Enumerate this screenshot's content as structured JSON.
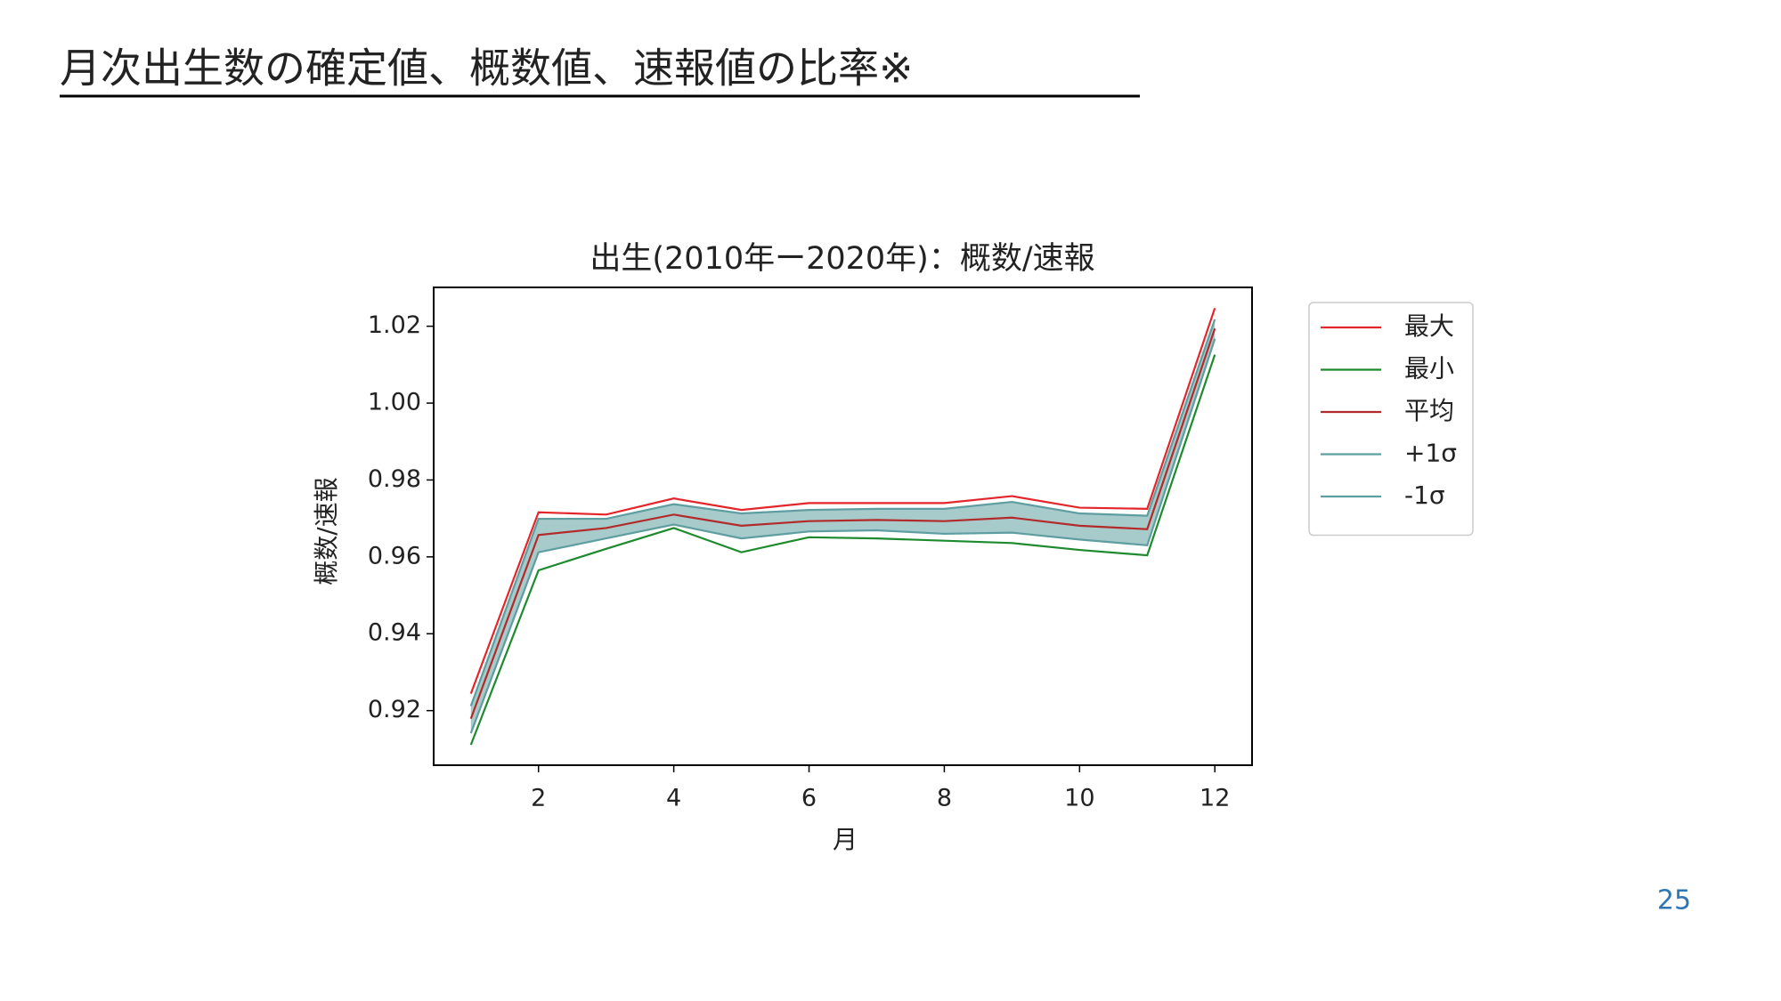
{
  "slide": {
    "title": "月次出生数の確定値、概数値、速報値の比率※",
    "page_number": "25"
  },
  "chart_data": {
    "type": "line",
    "title": "出生(2010年ー2020年)：概数/速報",
    "x_label": "月",
    "y_label": "概数/速報",
    "x": [
      1,
      2,
      3,
      4,
      5,
      6,
      7,
      8,
      9,
      10,
      11,
      12
    ],
    "series": [
      {
        "name": "最大",
        "color": "#e3262b",
        "values": [
          0.9244,
          0.9716,
          0.971,
          0.9752,
          0.9722,
          0.974,
          0.974,
          0.974,
          0.9758,
          0.9728,
          0.9725,
          1.0247
        ]
      },
      {
        "name": "最小",
        "color": "#1e8a2e",
        "values": [
          0.9111,
          0.9565,
          0.9621,
          0.9675,
          0.9612,
          0.9651,
          0.9648,
          0.9642,
          0.9636,
          0.9618,
          0.9604,
          1.0126
        ]
      },
      {
        "name": "平均",
        "color": "#b22a2a",
        "values": [
          0.9179,
          0.9657,
          0.9675,
          0.971,
          0.9681,
          0.9693,
          0.9696,
          0.9693,
          0.9702,
          0.9681,
          0.9672,
          1.0194
        ]
      },
      {
        "name": "+1σ",
        "color": "#5f9ea0",
        "values": [
          0.9212,
          0.9699,
          0.9699,
          0.9737,
          0.9713,
          0.9722,
          0.9725,
          0.9725,
          0.9743,
          0.9713,
          0.9707,
          1.0218
        ]
      },
      {
        "name": "-1σ",
        "color": "#5f9ea0",
        "values": [
          0.9141,
          0.9612,
          0.9648,
          0.9684,
          0.9648,
          0.9666,
          0.9669,
          0.966,
          0.9663,
          0.9645,
          0.963,
          1.0167
        ]
      }
    ],
    "band_color": "#5f9ea0",
    "xlim": [
      0.45,
      12.55
    ],
    "ylim": [
      0.9058,
      1.0301
    ],
    "xticks": [
      2,
      4,
      6,
      8,
      10,
      12
    ],
    "yticks": [
      {
        "value": 0.92,
        "label": "0.92"
      },
      {
        "value": 0.94,
        "label": "0.94"
      },
      {
        "value": 0.96,
        "label": "0.96"
      },
      {
        "value": 0.98,
        "label": "0.98"
      },
      {
        "value": 1.0,
        "label": "1.00"
      },
      {
        "value": 1.02,
        "label": "1.02"
      }
    ],
    "grid": false,
    "legend": "outside-right"
  }
}
